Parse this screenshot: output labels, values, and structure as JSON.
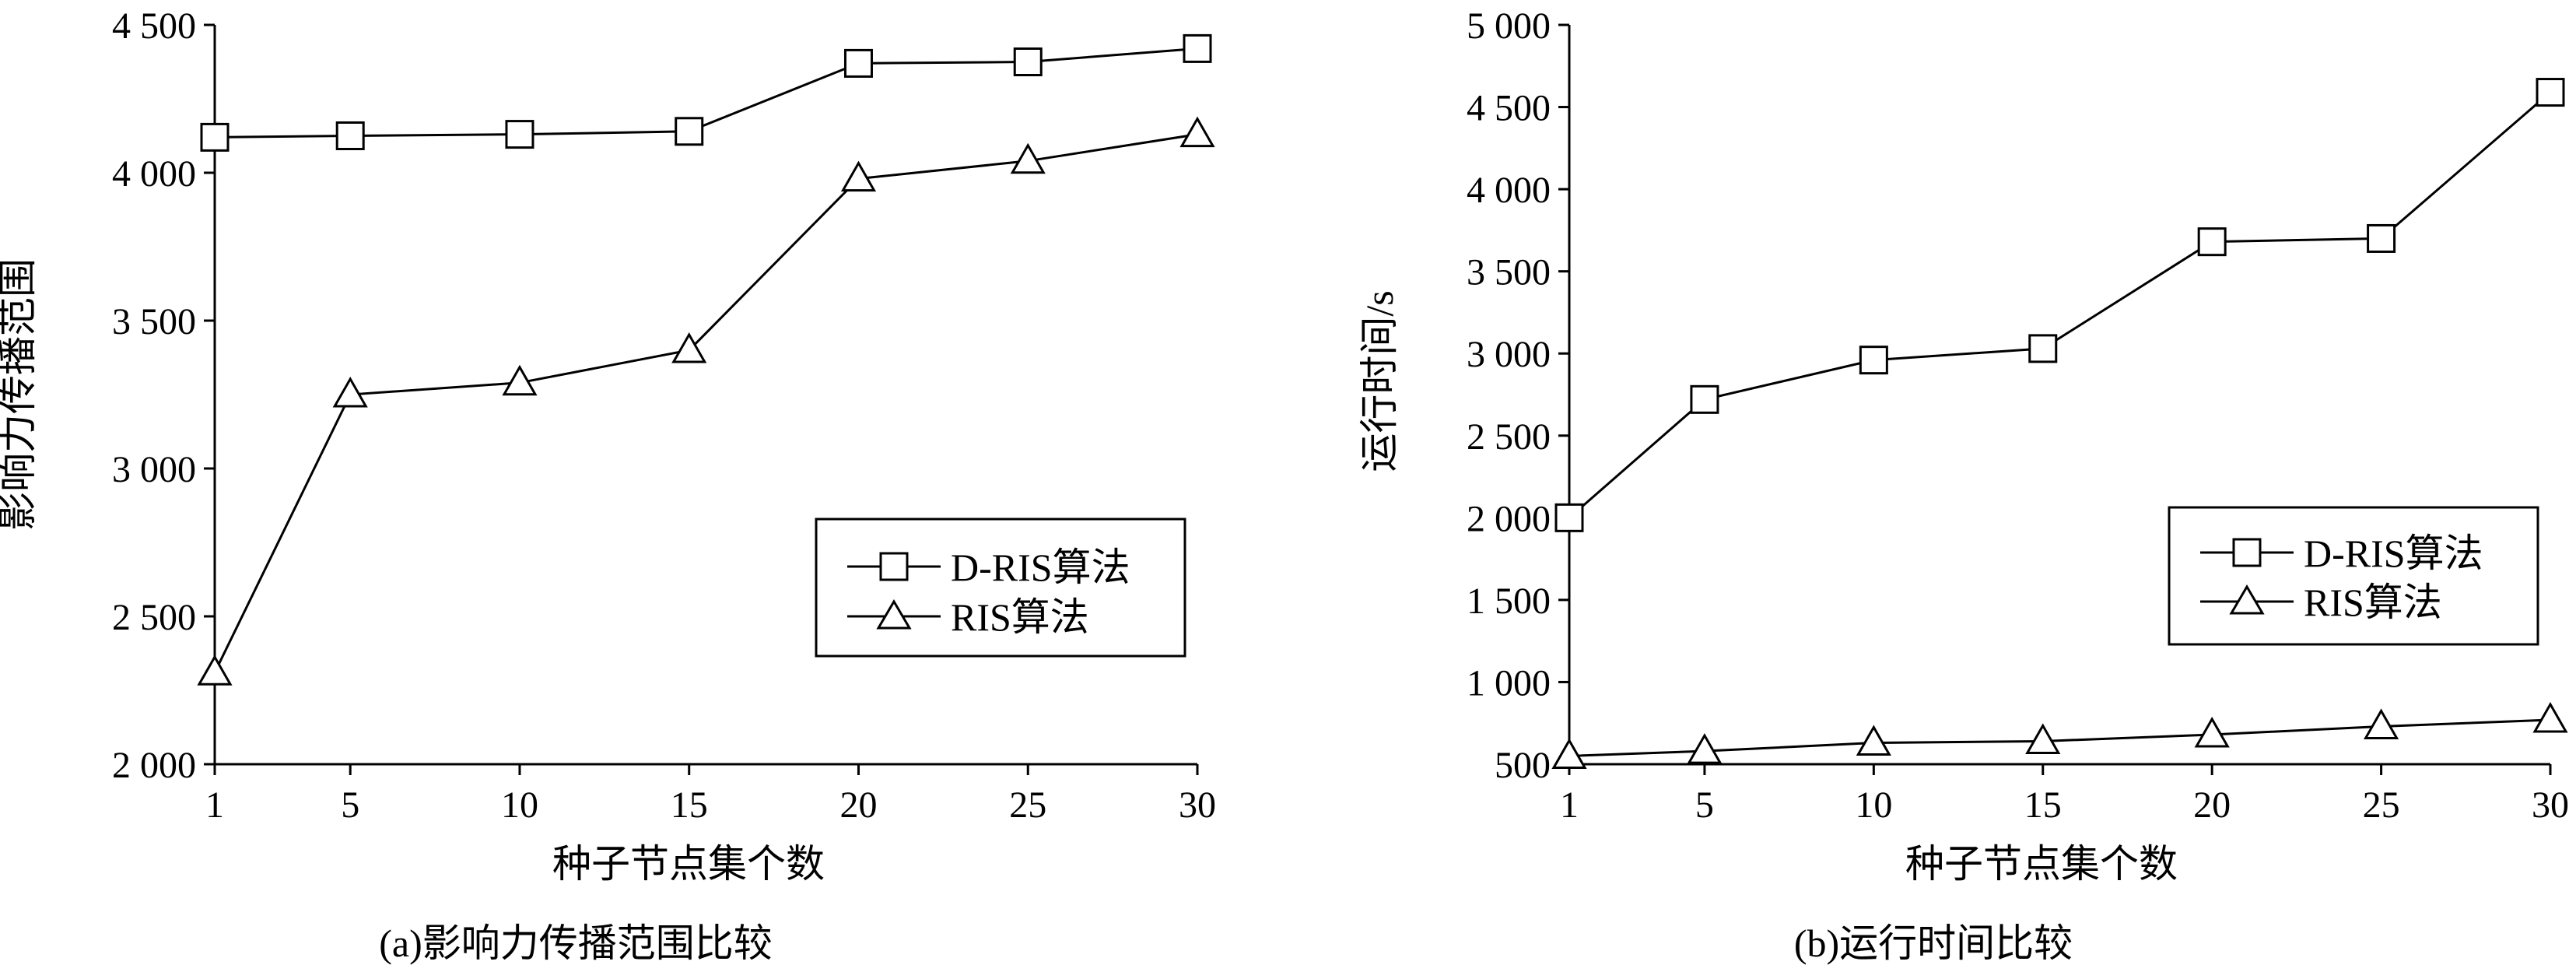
{
  "chart_data": [
    {
      "type": "line",
      "caption": "(a)影响力传播范围比较",
      "xlabel": "种子节点集个数",
      "ylabel": "影响力传播范围",
      "x": [
        1,
        5,
        10,
        15,
        20,
        25,
        30
      ],
      "xticks": [
        "1",
        "5",
        "10",
        "15",
        "20",
        "25",
        "30"
      ],
      "yticks": [
        2000,
        2500,
        3000,
        3500,
        4000,
        4500
      ],
      "ytick_labels": [
        "2 000",
        "2 500",
        "3 000",
        "3 500",
        "4 000",
        "4 500"
      ],
      "ylim": [
        2000,
        4500
      ],
      "grid": false,
      "legend_position": "center-right",
      "series": [
        {
          "name": "D-RIS算法",
          "marker": "square",
          "values": [
            4120,
            4125,
            4130,
            4140,
            4370,
            4375,
            4420
          ]
        },
        {
          "name": "RIS算法",
          "marker": "triangle",
          "values": [
            2310,
            3250,
            3290,
            3400,
            3980,
            4040,
            4130
          ]
        }
      ]
    },
    {
      "type": "line",
      "caption": "(b)运行时间比较",
      "xlabel": "种子节点集个数",
      "ylabel": "运行时间/s",
      "x": [
        1,
        5,
        10,
        15,
        20,
        25,
        30
      ],
      "xticks": [
        "1",
        "5",
        "10",
        "15",
        "20",
        "25",
        "30"
      ],
      "yticks": [
        500,
        1000,
        1500,
        2000,
        2500,
        3000,
        3500,
        4000,
        4500,
        5000
      ],
      "ytick_labels": [
        "500",
        "1 000",
        "1 500",
        "2 000",
        "2 500",
        "3 000",
        "3 500",
        "4 000",
        "4 500",
        "5 000"
      ],
      "ylim": [
        500,
        5000
      ],
      "grid": false,
      "legend_position": "center-right",
      "series": [
        {
          "name": "D-RIS算法",
          "marker": "square",
          "values": [
            2000,
            2720,
            2960,
            3030,
            3680,
            3700,
            4590
          ]
        },
        {
          "name": "RIS算法",
          "marker": "triangle",
          "values": [
            550,
            580,
            630,
            640,
            680,
            730,
            770
          ]
        }
      ]
    }
  ]
}
